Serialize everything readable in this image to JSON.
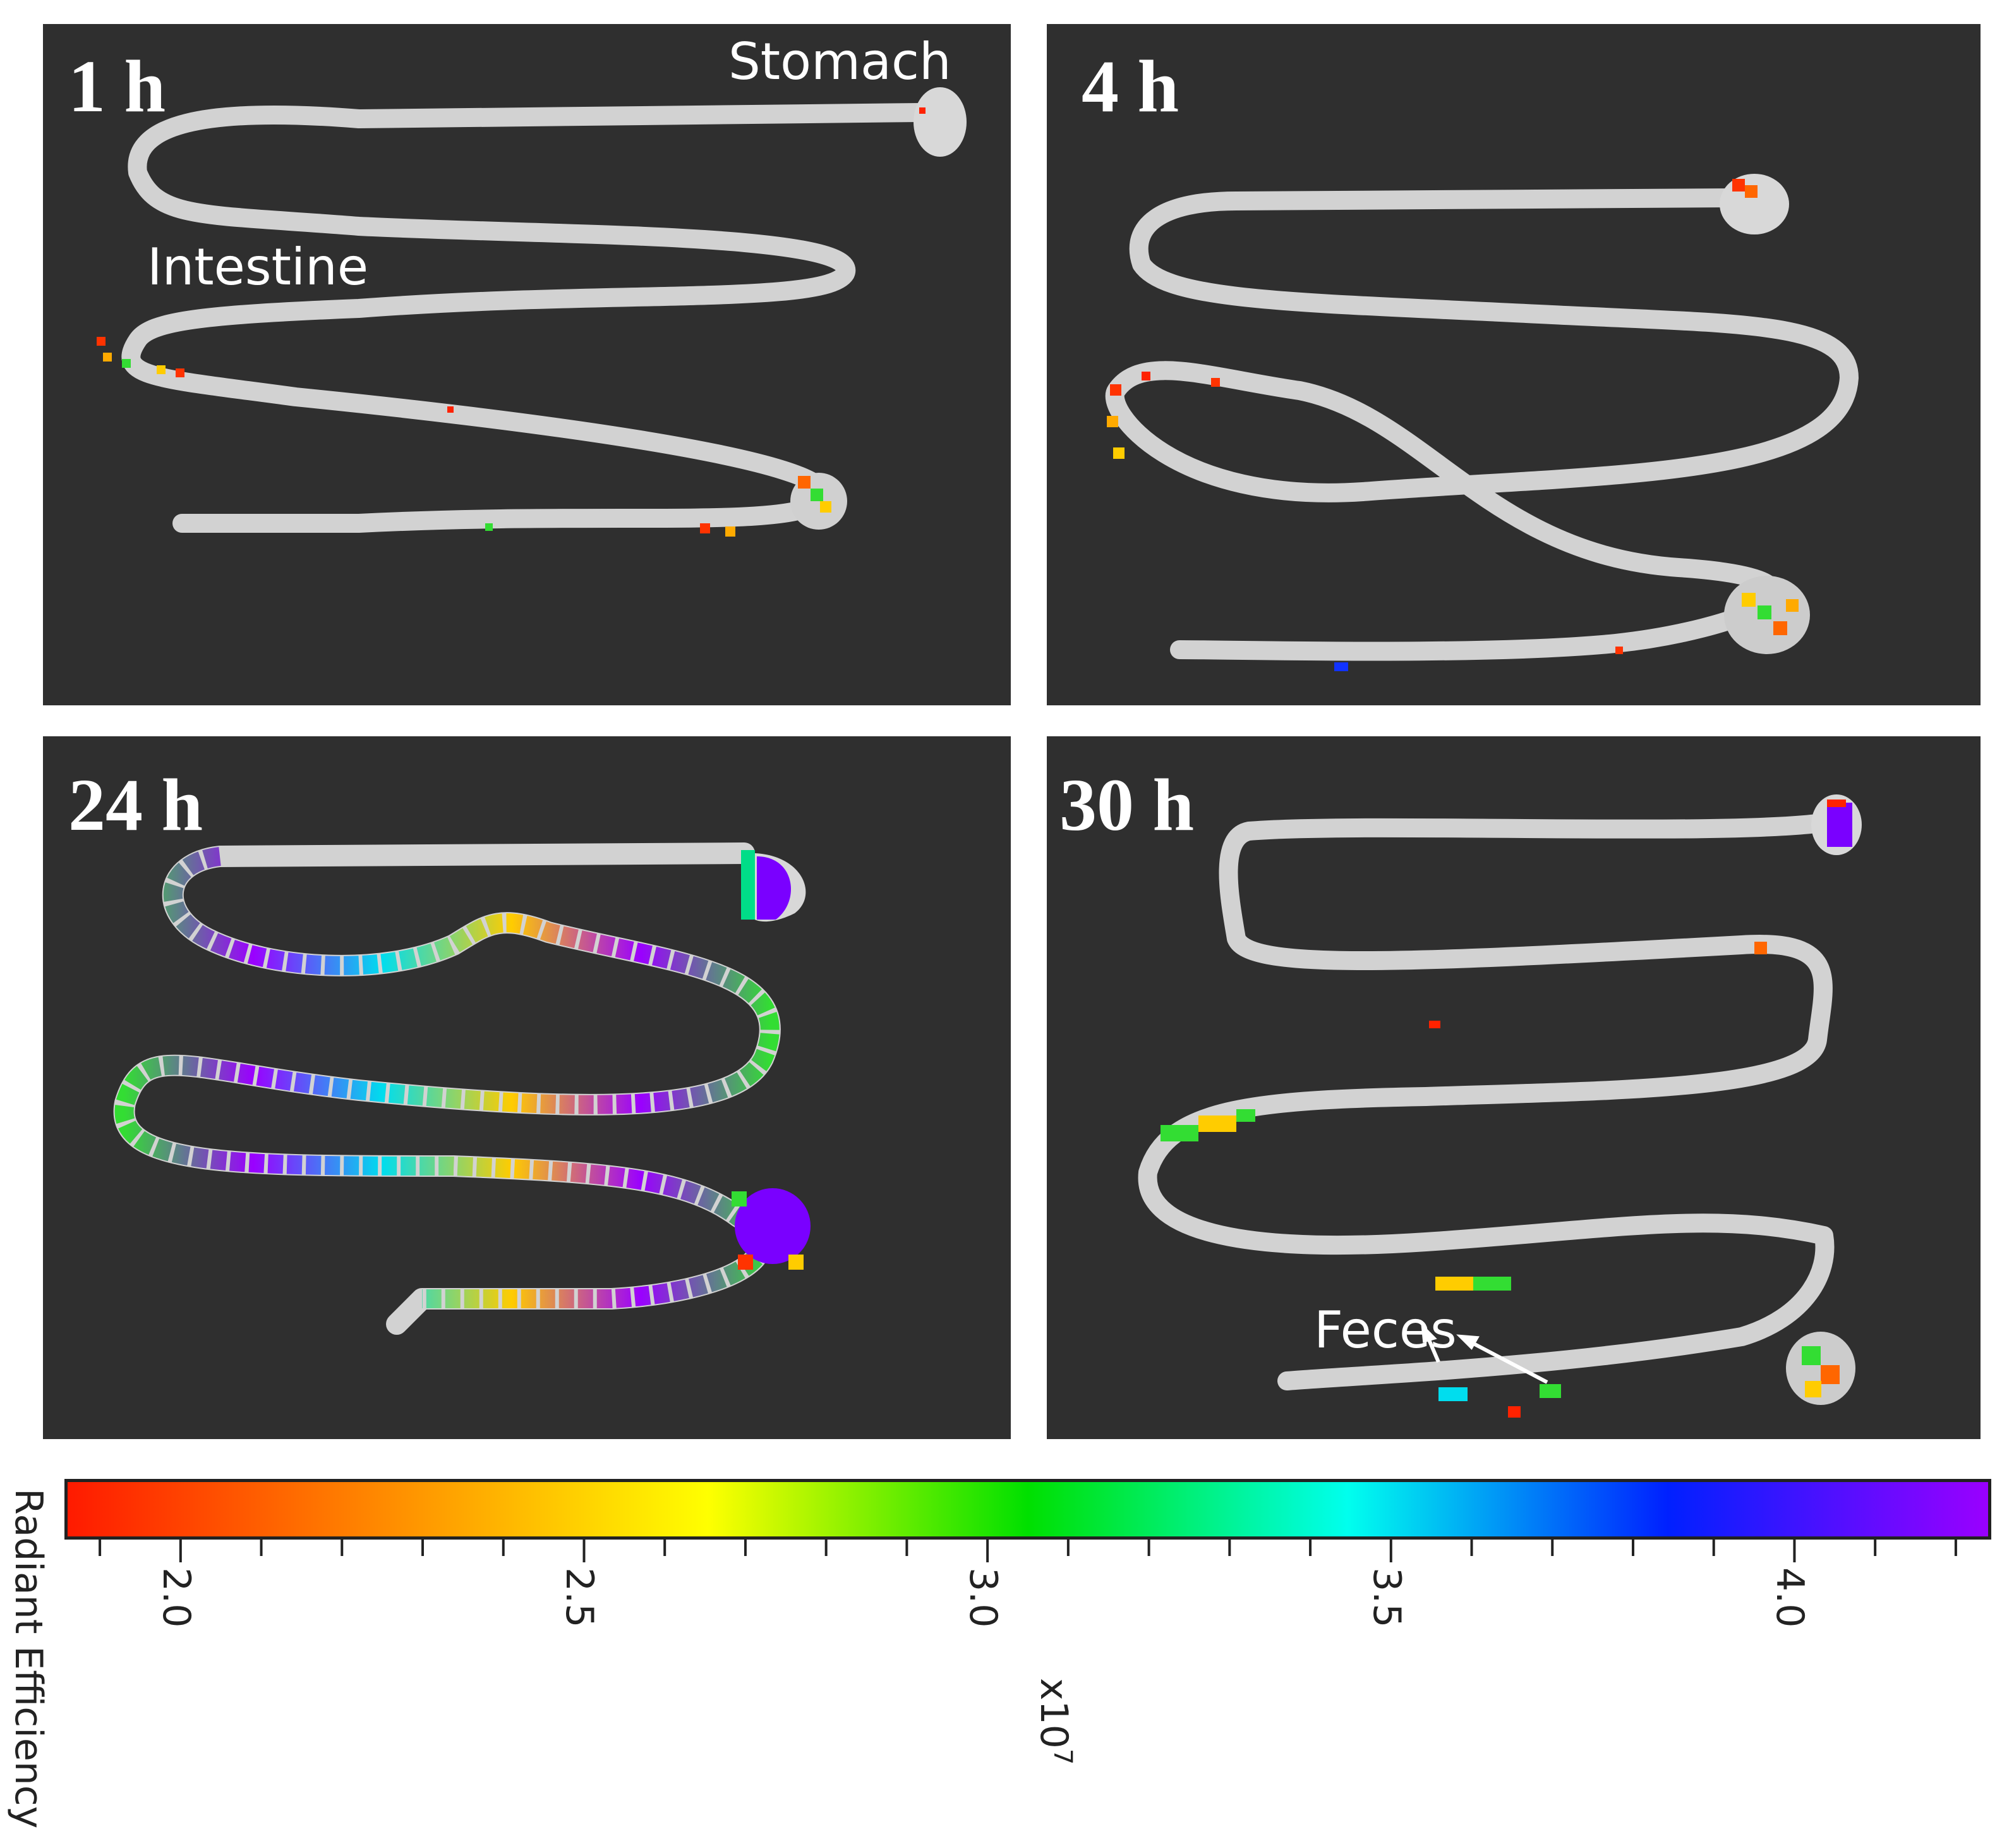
{
  "panels": [
    {
      "time_label": "1 h",
      "organ_labels": [
        "Stomach",
        "Intestine"
      ]
    },
    {
      "time_label": "4 h",
      "organ_labels": []
    },
    {
      "time_label": "24 h",
      "organ_labels": []
    },
    {
      "time_label": "30 h",
      "organ_labels": [
        "Feces"
      ]
    }
  ],
  "colorbar": {
    "title": "Radiant Efficiency",
    "multiplier": "x10",
    "exponent": "7",
    "tick_labels": [
      "2.0",
      "2.5",
      "3.0",
      "3.5",
      "4.0"
    ],
    "tick_values": [
      2.0,
      2.5,
      3.0,
      3.5,
      4.0
    ],
    "range": [
      1.86,
      4.24
    ],
    "colors": [
      "#ff1a00",
      "#ff8c00",
      "#ffff00",
      "#00e000",
      "#00ffee",
      "#0020ff",
      "#9a00ff"
    ]
  },
  "colors": {
    "background": "#2f2f2f",
    "tissue": "#cfcfcf"
  }
}
